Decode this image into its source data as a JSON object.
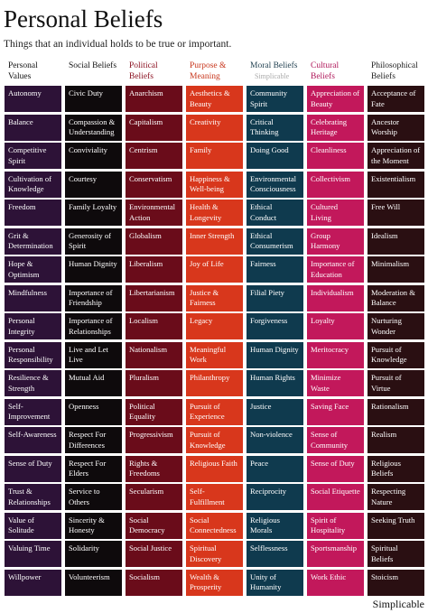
{
  "header": {
    "title": "Personal Beliefs",
    "subtitle": "Things that an individual holds to be true or important."
  },
  "columns": [
    {
      "title": "Personal Values",
      "items": [
        "Autonomy",
        "Balance",
        "Competitive Spirit",
        "Cultivation of Knowledge",
        "Freedom",
        "Grit & Determination",
        "Hope & Optimism",
        "Mindfulness",
        "Personal Integrity",
        "Personal Responsibility",
        "Resilience & Strength",
        "Self-Improvement",
        "Self-Awareness",
        "Sense of Duty",
        "Trust & Relationships",
        "Value of Solitude",
        "Valuing Time",
        "Willpower"
      ]
    },
    {
      "title": "Social Beliefs",
      "items": [
        "Civic Duty",
        "Compassion & Understanding",
        "Conviviality",
        "Courtesy",
        "Family Loyalty",
        "Generosity of Spirit",
        "Human Dignity",
        "Importance of Friendship",
        "Importance of Relationships",
        "Live and Let Live",
        "Mutual Aid",
        "Openness",
        "Respect For Differences",
        "Respect For Elders",
        "Service to Others",
        "Sincerity & Honesty",
        "Solidarity",
        "Volunteerism"
      ]
    },
    {
      "title": "Political Beliefs",
      "items": [
        "Anarchism",
        "Capitalism",
        "Centrism",
        "Conservatism",
        "Environmental Action",
        "Globalism",
        "Liberalism",
        "Libertarianism",
        "Localism",
        "Nationalism",
        "Pluralism",
        "Political Equality",
        "Progressivism",
        "Rights & Freedoms",
        "Secularism",
        "Social Democracy",
        "Social Justice",
        "Socialism"
      ]
    },
    {
      "title": "Purpose & Meaning",
      "items": [
        "Aesthetics & Beauty",
        "Creativity",
        "Family",
        "Happiness & Well-being",
        "Health & Longevity",
        "Inner Strength",
        "Joy of Life",
        "Justice & Fairness",
        "Legacy",
        "Meaningful Work",
        "Philanthropy",
        "Pursuit of Experience",
        "Pursuit of Knowledge",
        "Religious Faith",
        "Self-Fulfillment",
        "Social Connectedness",
        "Spiritual Discovery",
        "Wealth & Prosperity"
      ]
    },
    {
      "title": "Moral Beliefs",
      "items": [
        "Community Spirit",
        "Critical Thinking",
        "Doing Good",
        "Environmental Consciousness",
        "Ethical Conduct",
        "Ethical Consumerism",
        "Fairness",
        "Filial Piety",
        "Forgiveness",
        "Human Dignity",
        "Human Rights",
        "Justice",
        "Non-violence",
        "Peace",
        "Reciprocity",
        "Religious Morals",
        "Selflessness",
        "Unity of Humanity"
      ]
    },
    {
      "title": "Cultural Beliefs",
      "items": [
        "Appreciation of Beauty",
        "Celebrating Heritage",
        "Cleanliness",
        "Collectivism",
        "Cultured Living",
        "Group Harmony",
        "Importance of Education",
        "Individualism",
        "Loyalty",
        "Meritocracy",
        "Minimize Waste",
        "Saving Face",
        "Sense of Community",
        "Sense of Duty",
        "Social Etiquette",
        "Spirit of Hospitality",
        "Sportsmanship",
        "Work Ethic"
      ]
    },
    {
      "title": "Philosophical Beliefs",
      "items": [
        "Acceptance of Fate",
        "Ancestor Worship",
        "Appreciation of the Moment",
        "Existentialism",
        "Free Will",
        "Idealism",
        "Minimalism",
        "Moderation & Balance",
        "Nurturing Wonder",
        "Pursuit of Knowledge",
        "Pursuit of Virtue",
        "Rationalism",
        "Realism",
        "Religious Beliefs",
        "Respecting Nature",
        "Seeking Truth",
        "Spiritual Beliefs",
        "Stoicism"
      ]
    }
  ],
  "watermark": "Simplicable",
  "footer": "Simplicable"
}
